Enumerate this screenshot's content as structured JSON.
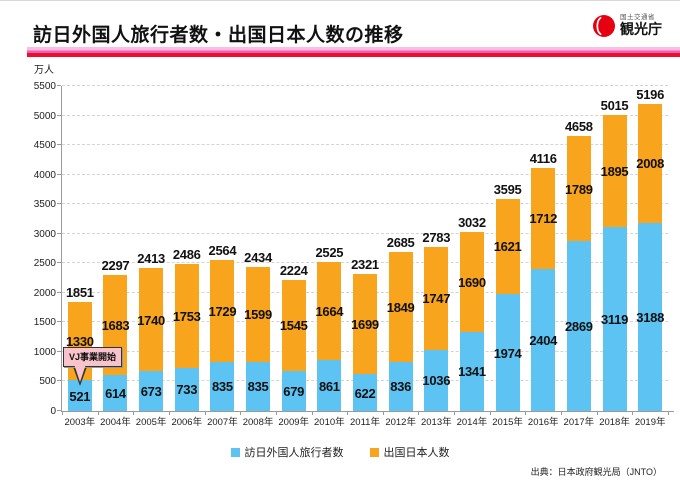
{
  "header": {
    "title": "訪日外国人旅行者数・出国日本人数の推移",
    "logo": {
      "ministry": "国土交通省",
      "agency": "観光庁"
    }
  },
  "chart": {
    "unit_label": "万人",
    "annotation": "VJ事業開始",
    "source": "出典：日本政府観光局（JNTO）",
    "colors": {
      "visitors": "#5cc3f2",
      "departures": "#f8a41c"
    },
    "legend": [
      {
        "key": "visitors",
        "label": "訪日外国人旅行者数"
      },
      {
        "key": "departures",
        "label": "出国日本人数"
      }
    ]
  },
  "chart_data": {
    "type": "bar",
    "stacked": true,
    "title": "訪日外国人旅行者数・出国日本人数の推移",
    "xlabel": "",
    "ylabel": "万人",
    "ylim": [
      0,
      5500
    ],
    "ytick_step": 500,
    "grid": true,
    "legend_position": "bottom",
    "categories": [
      "2003年",
      "2004年",
      "2005年",
      "2006年",
      "2007年",
      "2008年",
      "2009年",
      "2010年",
      "2011年",
      "2012年",
      "2013年",
      "2014年",
      "2015年",
      "2016年",
      "2017年",
      "2018年",
      "2019年"
    ],
    "series": [
      {
        "name": "訪日外国人旅行者数",
        "color": "#5cc3f2",
        "values": [
          521,
          614,
          673,
          733,
          835,
          835,
          679,
          861,
          622,
          836,
          1036,
          1341,
          1974,
          2404,
          2869,
          3119,
          3188
        ]
      },
      {
        "name": "出国日本人数",
        "color": "#f8a41c",
        "values": [
          1330,
          1683,
          1740,
          1753,
          1729,
          1599,
          1545,
          1664,
          1699,
          1849,
          1747,
          1690,
          1621,
          1712,
          1789,
          1895,
          2008
        ]
      }
    ],
    "totals": [
      1851,
      2297,
      2413,
      2486,
      2564,
      2434,
      2224,
      2525,
      2321,
      2685,
      2783,
      3032,
      3595,
      4116,
      4658,
      5015,
      5196
    ]
  }
}
